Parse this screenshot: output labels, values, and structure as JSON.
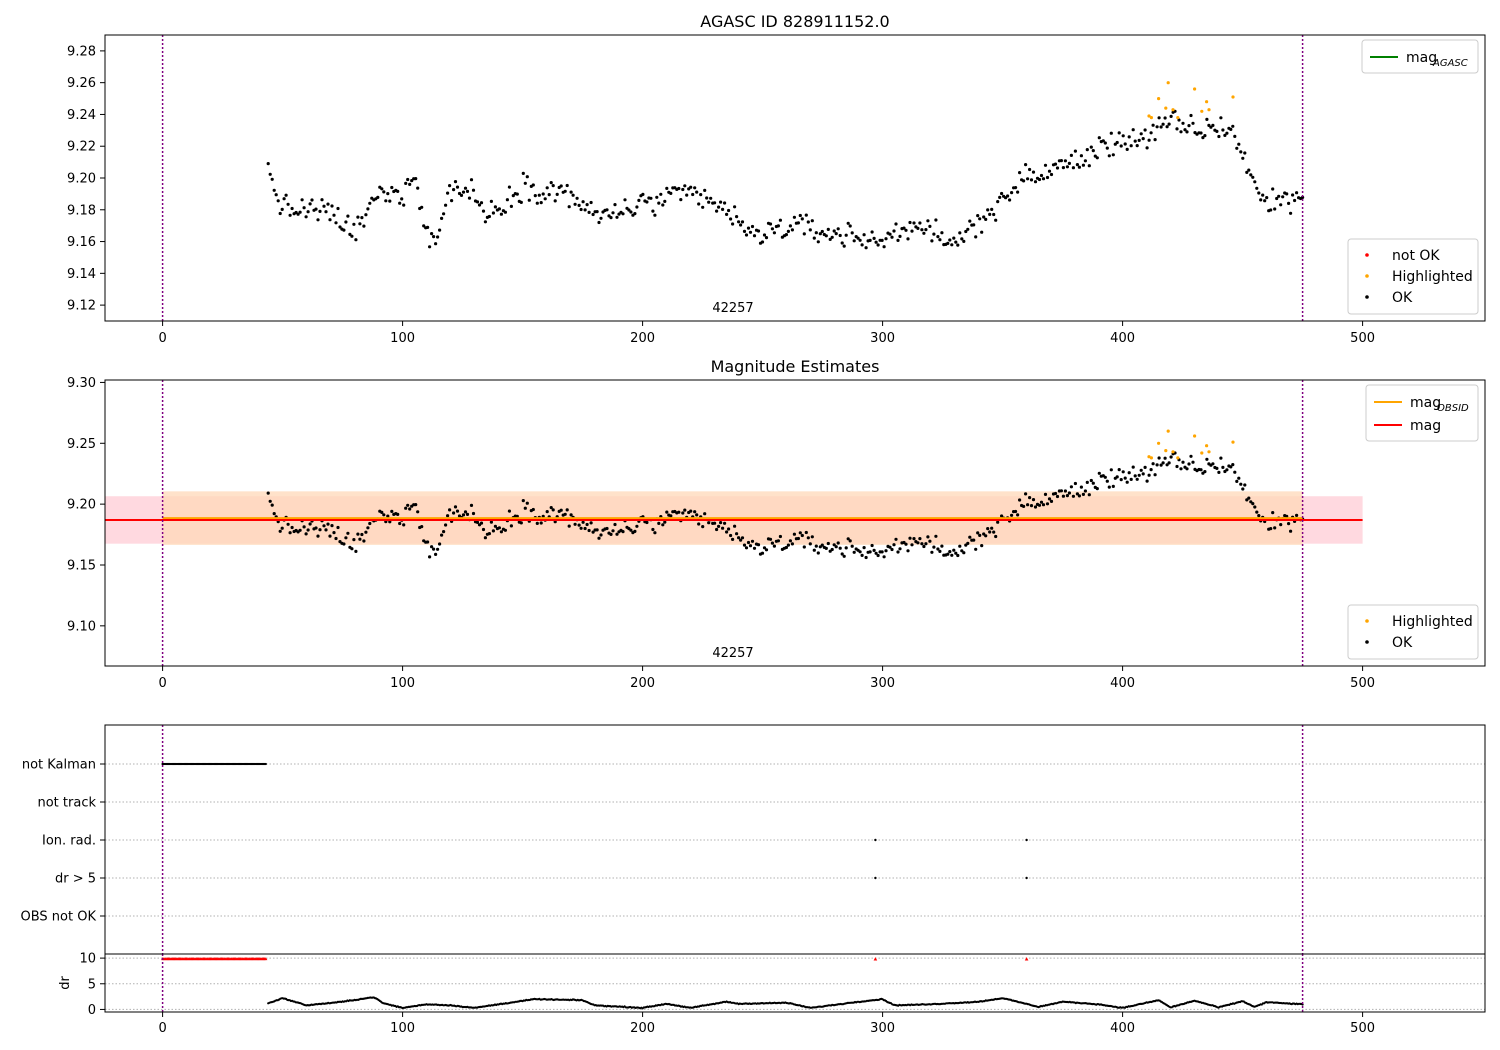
{
  "figure": {
    "top_title": "AGASC ID 828911152.0",
    "mid_title": "Magnitude Estimates",
    "obsid": "42257"
  },
  "colors": {
    "ok": "#000000",
    "highlighted": "#ffa500",
    "not_ok": "#ff0000",
    "mag_agasc": "#008000",
    "mag_obsid": "#ffa500",
    "mag": "#ff0000",
    "band_mag": "#ffc0cb",
    "band_obsid": "#ffd8b8",
    "obs_line": "#800080"
  },
  "chart_data": [
    {
      "type": "scatter",
      "title": "AGASC ID 828911152.0",
      "xlim": [
        -24,
        551
      ],
      "ylim": [
        9.11,
        9.29
      ],
      "xticks": [
        0,
        100,
        200,
        300,
        400,
        500
      ],
      "yticks": [
        9.12,
        9.14,
        9.16,
        9.18,
        9.2,
        9.22,
        9.24,
        9.26,
        9.28
      ],
      "vlines": [
        0,
        475
      ],
      "legend_lines": [
        {
          "label": "mag",
          "sub": "AGASC",
          "color": "#008000"
        }
      ],
      "legend_points": [
        {
          "label": "not OK",
          "color": "#ff0000"
        },
        {
          "label": "Highlighted",
          "color": "#ffa500"
        },
        {
          "label": "OK",
          "color": "#000000"
        }
      ],
      "obs_label": "42257",
      "series_ok_keyframes": [
        [
          44,
          9.205
        ],
        [
          50,
          9.18
        ],
        [
          60,
          9.18
        ],
        [
          70,
          9.178
        ],
        [
          80,
          9.165
        ],
        [
          90,
          9.19
        ],
        [
          100,
          9.19
        ],
        [
          105,
          9.205
        ],
        [
          110,
          9.165
        ],
        [
          114,
          9.16
        ],
        [
          120,
          9.195
        ],
        [
          130,
          9.19
        ],
        [
          135,
          9.175
        ],
        [
          150,
          9.195
        ],
        [
          170,
          9.19
        ],
        [
          180,
          9.175
        ],
        [
          200,
          9.183
        ],
        [
          220,
          9.19
        ],
        [
          235,
          9.18
        ],
        [
          245,
          9.163
        ],
        [
          260,
          9.17
        ],
        [
          280,
          9.165
        ],
        [
          300,
          9.16
        ],
        [
          310,
          9.17
        ],
        [
          320,
          9.17
        ],
        [
          325,
          9.155
        ],
        [
          335,
          9.165
        ],
        [
          345,
          9.18
        ],
        [
          360,
          9.2
        ],
        [
          380,
          9.21
        ],
        [
          400,
          9.225
        ],
        [
          410,
          9.225
        ],
        [
          420,
          9.235
        ],
        [
          430,
          9.23
        ],
        [
          445,
          9.232
        ],
        [
          450,
          9.215
        ],
        [
          458,
          9.185
        ],
        [
          475,
          9.188
        ]
      ],
      "highlighted_points": [
        [
          411,
          9.239
        ],
        [
          412,
          9.238
        ],
        [
          415,
          9.25
        ],
        [
          418,
          9.244
        ],
        [
          419,
          9.26
        ],
        [
          421,
          9.243
        ],
        [
          423,
          9.238
        ],
        [
          430,
          9.256
        ],
        [
          433,
          9.242
        ],
        [
          435,
          9.248
        ],
        [
          436,
          9.243
        ],
        [
          446,
          9.251
        ]
      ],
      "x_start": 44,
      "x_end": 475,
      "n_points": 520
    },
    {
      "type": "scatter",
      "title": "Magnitude Estimates",
      "xlim": [
        -24,
        551
      ],
      "ylim": [
        9.067,
        9.302
      ],
      "xticks": [
        0,
        100,
        200,
        300,
        400,
        500
      ],
      "yticks": [
        9.1,
        9.15,
        9.2,
        9.25,
        9.3
      ],
      "ytick_labels": [
        "9.10",
        "9.15",
        "9.20",
        "9.25",
        "9.30"
      ],
      "vlines": [
        0,
        475
      ],
      "hlines": [
        {
          "name": "mag_OBSID",
          "value": 9.1885,
          "color": "#ffa500"
        },
        {
          "name": "mag",
          "value": 9.187,
          "color": "#ff0000"
        }
      ],
      "bands": [
        {
          "name": "mag",
          "x": [
            -24,
            500
          ],
          "y": [
            9.1675,
            9.2065
          ]
        },
        {
          "name": "mag_OBSID",
          "x": [
            0,
            475
          ],
          "y": [
            9.1665,
            9.2105
          ]
        }
      ],
      "legend_lines": [
        {
          "label": "mag",
          "sub": "OBSID",
          "color": "#ffa500"
        },
        {
          "label": "mag",
          "sub": "",
          "color": "#ff0000"
        }
      ],
      "legend_points": [
        {
          "label": "Highlighted",
          "color": "#ffa500"
        },
        {
          "label": "OK",
          "color": "#000000"
        }
      ],
      "obs_label": "42257"
    },
    {
      "type": "scatter",
      "title": "",
      "xlim": [
        -24,
        551
      ],
      "categories": [
        "not Kalman",
        "not track",
        "Ion. rad.",
        "dr > 5",
        "OBS not OK"
      ],
      "flag_points": {
        "not Kalman": {
          "range": [
            0,
            43
          ]
        },
        "Ion. rad.": {
          "x": [
            297,
            360
          ]
        },
        "dr > 5": {
          "x": [
            297,
            360
          ]
        }
      },
      "vlines": [
        0,
        475
      ]
    },
    {
      "type": "scatter",
      "ylabel": "dr",
      "xlim": [
        -24,
        551
      ],
      "ylim": [
        -0.5,
        10.8
      ],
      "yticks": [
        0,
        5,
        10
      ],
      "xticks": [
        0,
        100,
        200,
        300,
        400,
        500
      ],
      "clipped_points": {
        "range": [
          0,
          43
        ],
        "extra": [
          297,
          360
        ],
        "value": 9.8
      },
      "dr_keyframes": [
        [
          44,
          1.2
        ],
        [
          50,
          2.2
        ],
        [
          60,
          0.8
        ],
        [
          75,
          1.5
        ],
        [
          88,
          2.4
        ],
        [
          92,
          1.2
        ],
        [
          100,
          0.3
        ],
        [
          110,
          1.0
        ],
        [
          120,
          0.8
        ],
        [
          130,
          0.3
        ],
        [
          140,
          1.0
        ],
        [
          155,
          2.0
        ],
        [
          175,
          1.8
        ],
        [
          180,
          0.8
        ],
        [
          200,
          0.3
        ],
        [
          210,
          1.1
        ],
        [
          220,
          0.3
        ],
        [
          235,
          1.5
        ],
        [
          240,
          1.1
        ],
        [
          260,
          1.3
        ],
        [
          270,
          0.3
        ],
        [
          290,
          1.5
        ],
        [
          300,
          2.0
        ],
        [
          305,
          0.8
        ],
        [
          320,
          1.0
        ],
        [
          340,
          1.5
        ],
        [
          350,
          2.2
        ],
        [
          365,
          0.5
        ],
        [
          375,
          1.5
        ],
        [
          390,
          1.0
        ],
        [
          400,
          0.3
        ],
        [
          415,
          1.8
        ],
        [
          420,
          0.4
        ],
        [
          430,
          1.7
        ],
        [
          440,
          0.4
        ],
        [
          450,
          1.6
        ],
        [
          455,
          0.5
        ],
        [
          460,
          1.4
        ],
        [
          475,
          1.0
        ]
      ],
      "x_start": 44,
      "x_end": 475
    }
  ]
}
